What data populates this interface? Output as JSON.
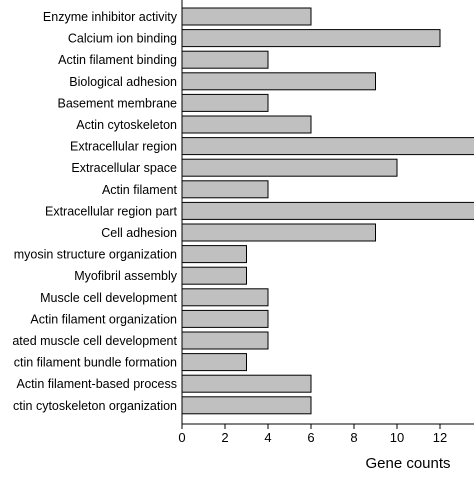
{
  "chart_data": {
    "type": "bar",
    "orientation": "horizontal",
    "categories": [
      "Enzyme inhibitor activity",
      "Calcium ion binding",
      "Actin filament binding",
      "Biological adhesion",
      "Basement membrane",
      "Actin cytoskeleton",
      "Extracellular region",
      "Extracellular space",
      "Actin filament",
      "Extracellular region part",
      "Cell adhesion",
      "myosin structure organization",
      "Myofibril assembly",
      "Muscle cell development",
      "Actin filament organization",
      "ated muscle cell development",
      "ctin filament bundle formation",
      "Actin filament-based process",
      "ctin cytoskeleton organization"
    ],
    "values": [
      6,
      12,
      4,
      9,
      4,
      6,
      14,
      10,
      4,
      14,
      9,
      3,
      3,
      4,
      4,
      4,
      3,
      6,
      6
    ],
    "xlabel": "Gene counts",
    "ylabel": "",
    "title": "",
    "xlim": [
      0,
      14
    ],
    "xticks": [
      0,
      2,
      4,
      6,
      8,
      10,
      12
    ],
    "grid": false,
    "legend": "none",
    "colors": {
      "bar_fill": "#c0c0c0",
      "bar_stroke": "#000000",
      "axis": "#000000"
    }
  }
}
